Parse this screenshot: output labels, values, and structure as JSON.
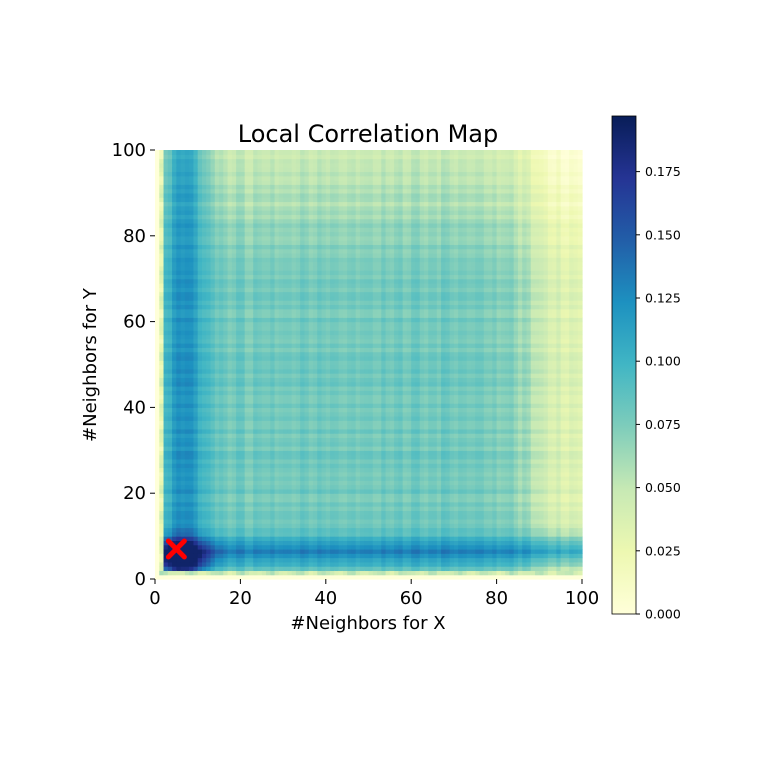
{
  "chart_data": {
    "type": "heatmap",
    "title": "Local Correlation Map",
    "xlabel": "#Neighbors for X",
    "ylabel": "#Neighbors for Y",
    "xlim": [
      0,
      100
    ],
    "ylim": [
      0,
      100
    ],
    "x_ticks": [
      0,
      20,
      40,
      60,
      80,
      100
    ],
    "y_ticks": [
      0,
      20,
      40,
      60,
      80,
      100
    ],
    "grid": false,
    "colormap": "YlGnBu",
    "colorbar": {
      "range": [
        0,
        0.197
      ],
      "ticks": [
        0.0,
        0.025,
        0.05,
        0.075,
        0.1,
        0.125,
        0.15,
        0.175
      ],
      "tick_labels": [
        "0.000",
        "0.025",
        "0.050",
        "0.075",
        "0.100",
        "0.125",
        "0.150",
        "0.175"
      ]
    },
    "heatmap_description_values": {
      "peak_value": 0.19,
      "plateau_value": 0.085,
      "edge_value": 0.03
    },
    "marker": {
      "x": 5,
      "y": 7,
      "shape": "X",
      "color": "#ff0000"
    }
  },
  "colors": {
    "colormap_stops": [
      "#ffffd9",
      "#edf8b1",
      "#c7e9b4",
      "#7fcdbb",
      "#41b6c4",
      "#1d91c0",
      "#225ea8",
      "#253494",
      "#081d58"
    ],
    "marker": "#ff0000"
  }
}
